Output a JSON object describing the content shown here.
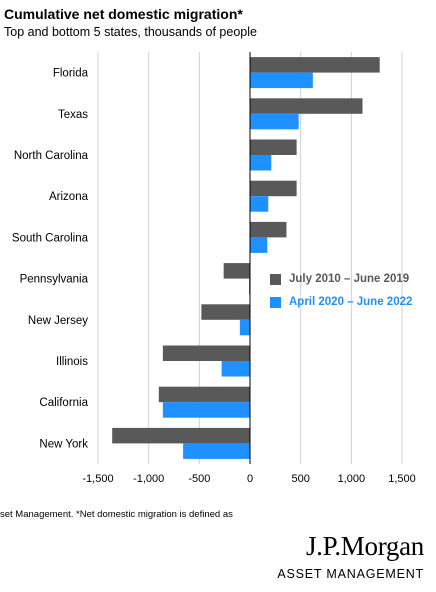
{
  "header": {
    "title": "Cumulative net domestic migration*",
    "subtitle": "Top and bottom 5 states, thousands of people"
  },
  "colors": {
    "series1": "#595959",
    "series2": "#1e90ff",
    "grid": "#d0d0d0",
    "axis": "#000000"
  },
  "chart_data": {
    "type": "bar",
    "orientation": "horizontal",
    "title": "Cumulative net domestic migration*",
    "subtitle": "Top and bottom 5 states, thousands of people",
    "categories": [
      "Florida",
      "Texas",
      "North Carolina",
      "Arizona",
      "South Carolina",
      "Pennsylvania",
      "New Jersey",
      "Illinois",
      "California",
      "New York"
    ],
    "series": [
      {
        "name": "July 2010 – June 2019",
        "values": [
          1280,
          1110,
          460,
          460,
          360,
          -260,
          -480,
          -860,
          -900,
          -1360
        ]
      },
      {
        "name": "April 2020 – June 2022",
        "values": [
          620,
          480,
          210,
          180,
          170,
          -10,
          -100,
          -280,
          -860,
          -660
        ]
      }
    ],
    "xlim": [
      -1500,
      1500
    ],
    "xticks": [
      -1500,
      -1000,
      -500,
      0,
      500,
      1000,
      1500
    ],
    "xtick_labels": [
      "-1,500",
      "-1,000",
      "-500",
      "0",
      "500",
      "1,000",
      "1,500"
    ],
    "grid": true,
    "legend_position": "right"
  },
  "footnote": "set Management. *Net domestic migration is defined as",
  "logo": {
    "main": "J.P.Morgan",
    "sub": "ASSET MANAGEMENT"
  }
}
